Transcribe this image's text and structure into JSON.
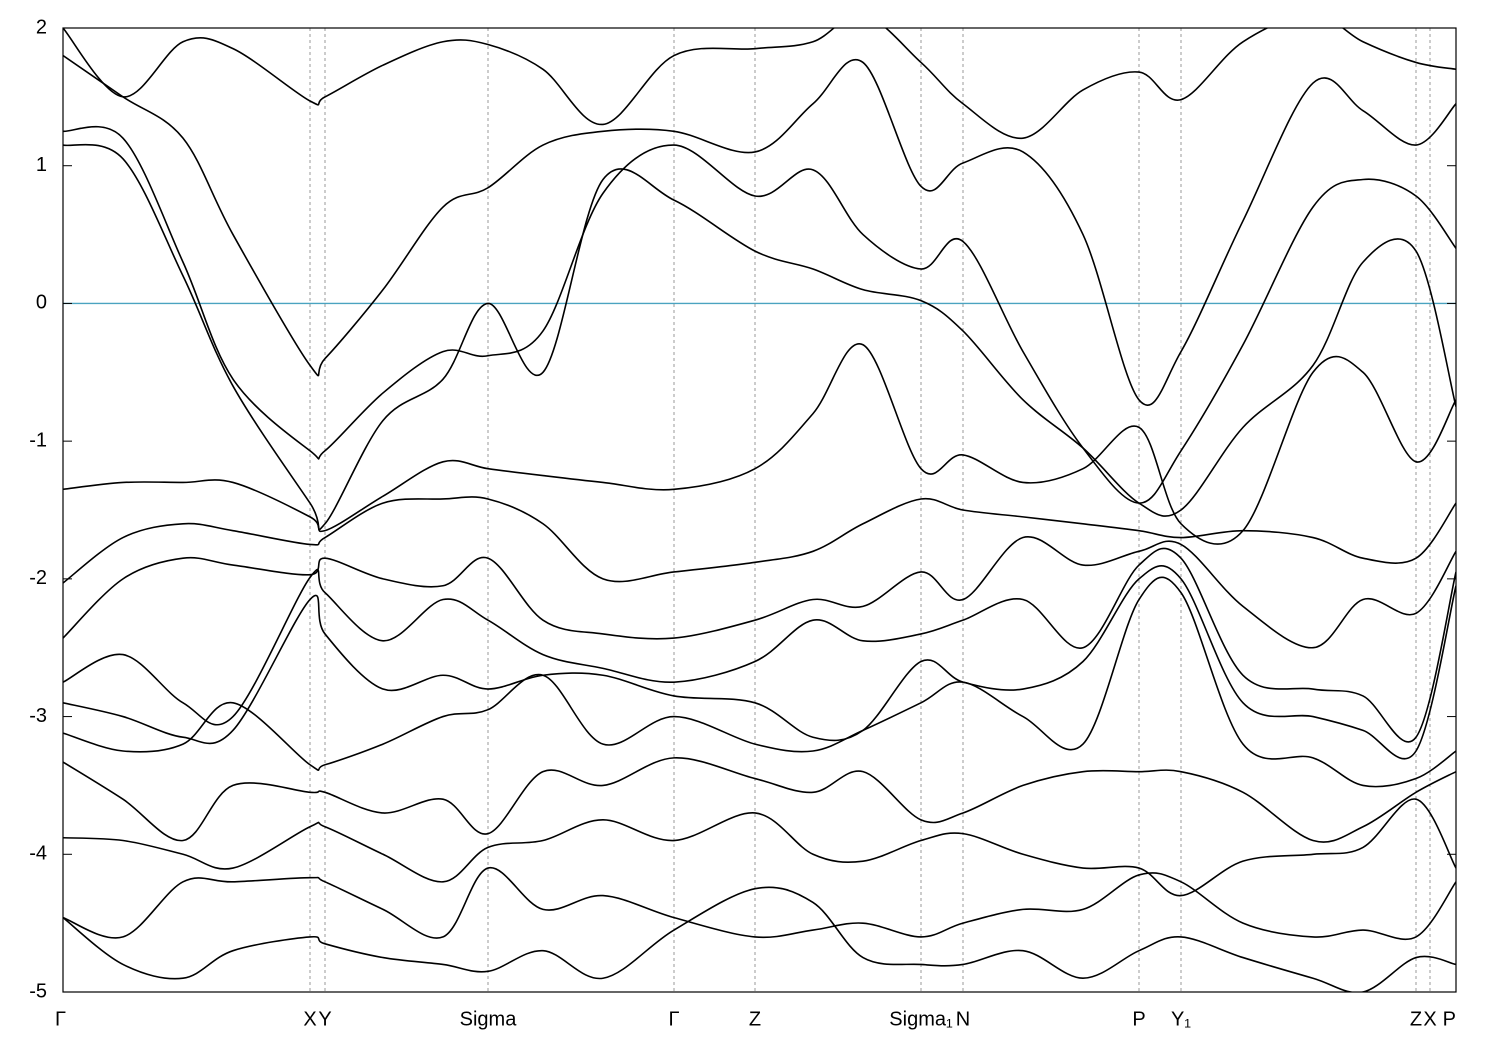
{
  "chart_data": {
    "type": "line",
    "x": [
      0,
      60,
      120,
      170,
      247,
      262,
      320,
      380,
      425,
      480,
      540,
      611,
      692,
      750,
      800,
      858,
      900,
      960,
      1020,
      1076,
      1118,
      1180,
      1250,
      1300,
      1353,
      1393
    ],
    "xlim": [
      0,
      1393
    ],
    "xticks": [
      {
        "value": 0,
        "label": "Γ"
      },
      {
        "value": 247,
        "label": "X"
      },
      {
        "value": 262,
        "label": "Y"
      },
      {
        "value": 425,
        "label": "Sigma"
      },
      {
        "value": 611,
        "label": "Γ"
      },
      {
        "value": 692,
        "label": "Z"
      },
      {
        "value": 858,
        "label": "Sigma₁"
      },
      {
        "value": 900,
        "label": "N"
      },
      {
        "value": 1076,
        "label": "P"
      },
      {
        "value": 1118,
        "label": "Y₁"
      },
      {
        "value": 1353,
        "label": "Z"
      },
      {
        "value": 1367,
        "label": "X"
      },
      {
        "value": 1393,
        "label": "P"
      }
    ],
    "ylim": [
      -5,
      2
    ],
    "yticks": [
      -5,
      -4,
      -3,
      -2,
      -1,
      0,
      1,
      2
    ],
    "grid": true,
    "fermi_level": 0,
    "fermi_color": "#4aa3c0",
    "series": [
      {
        "color": "#000000",
        "values": [
          2.0,
          1.5,
          1.9,
          1.85,
          1.47,
          1.5,
          1.73,
          1.9,
          1.88,
          1.7,
          1.3,
          1.8,
          1.85,
          1.9,
          2.1,
          1.75,
          1.45,
          1.2,
          1.55,
          1.68,
          1.48,
          1.9,
          2.1,
          1.9,
          1.75,
          1.7
        ]
      },
      {
        "color": "#000000",
        "values": [
          1.8,
          1.5,
          1.2,
          0.5,
          -0.45,
          -0.4,
          0.1,
          0.7,
          0.84,
          1.15,
          1.25,
          1.25,
          1.1,
          1.45,
          1.75,
          0.85,
          1.02,
          1.1,
          0.5,
          -0.7,
          -0.35,
          0.6,
          1.6,
          1.4,
          1.15,
          1.45
        ]
      },
      {
        "color": "#000000",
        "values": [
          1.25,
          1.2,
          0.3,
          -0.55,
          -1.07,
          -1.07,
          -0.65,
          -0.35,
          -0.38,
          -0.2,
          0.8,
          1.15,
          0.78,
          0.97,
          0.5,
          0.25,
          0.45,
          -0.35,
          -1.05,
          -1.45,
          -1.07,
          -0.3,
          0.7,
          0.9,
          0.78,
          0.4
        ]
      },
      {
        "color": "#000000",
        "values": [
          1.15,
          1.05,
          0.2,
          -0.6,
          -1.45,
          -1.6,
          -0.85,
          -0.55,
          0.0,
          -0.5,
          0.9,
          0.75,
          0.38,
          0.25,
          0.1,
          0.02,
          -0.2,
          -0.7,
          -1.05,
          -1.45,
          -1.5,
          -0.9,
          -0.45,
          0.3,
          0.38,
          -0.75
        ]
      },
      {
        "color": "#000000",
        "values": [
          -1.35,
          -1.3,
          -1.3,
          -1.3,
          -1.55,
          -1.65,
          -1.4,
          -1.15,
          -1.2,
          -1.25,
          -1.3,
          -1.35,
          -1.2,
          -0.8,
          -0.3,
          -1.2,
          -1.1,
          -1.3,
          -1.2,
          -0.9,
          -1.6,
          -1.65,
          -0.5,
          -0.5,
          -1.15,
          -0.7
        ]
      },
      {
        "color": "#000000",
        "values": [
          -2.03,
          -1.7,
          -1.6,
          -1.65,
          -1.75,
          -1.7,
          -1.45,
          -1.42,
          -1.42,
          -1.6,
          -2.0,
          -1.95,
          -1.88,
          -1.8,
          -1.6,
          -1.42,
          -1.5,
          -1.55,
          -1.6,
          -1.65,
          -1.7,
          -1.65,
          -1.7,
          -1.85,
          -1.85,
          -1.45
        ]
      },
      {
        "color": "#000000",
        "values": [
          -2.43,
          -2.0,
          -1.85,
          -1.9,
          -1.97,
          -1.85,
          -2.0,
          -2.05,
          -1.85,
          -2.3,
          -2.4,
          -2.43,
          -2.3,
          -2.15,
          -2.2,
          -1.95,
          -2.15,
          -1.7,
          -1.9,
          -1.8,
          -1.75,
          -2.2,
          -2.5,
          -2.15,
          -2.25,
          -1.8
        ]
      },
      {
        "color": "#000000",
        "values": [
          -2.75,
          -2.55,
          -2.9,
          -3.0,
          -1.99,
          -2.1,
          -2.45,
          -2.15,
          -2.3,
          -2.55,
          -2.65,
          -2.75,
          -2.6,
          -2.3,
          -2.45,
          -2.4,
          -2.3,
          -2.15,
          -2.5,
          -1.9,
          -1.85,
          -2.7,
          -2.8,
          -2.85,
          -3.15,
          -1.95
        ]
      },
      {
        "color": "#000000",
        "values": [
          -2.9,
          -3.0,
          -3.15,
          -3.1,
          -2.15,
          -2.4,
          -2.8,
          -2.7,
          -2.8,
          -2.7,
          -2.7,
          -2.85,
          -2.9,
          -3.15,
          -3.1,
          -2.6,
          -2.75,
          -2.8,
          -2.6,
          -2.0,
          -2.0,
          -2.9,
          -3.0,
          -3.1,
          -3.25,
          -2.05
        ]
      },
      {
        "color": "#000000",
        "values": [
          -3.12,
          -3.25,
          -3.2,
          -2.9,
          -3.35,
          -3.35,
          -3.2,
          -3.0,
          -2.95,
          -2.7,
          -3.2,
          -3.0,
          -3.2,
          -3.25,
          -3.1,
          -2.9,
          -2.75,
          -3.0,
          -3.2,
          -2.15,
          -2.1,
          -3.2,
          -3.3,
          -3.5,
          -3.45,
          -3.25
        ]
      },
      {
        "color": "#000000",
        "values": [
          -3.33,
          -3.6,
          -3.9,
          -3.5,
          -3.55,
          -3.55,
          -3.7,
          -3.6,
          -3.85,
          -3.4,
          -3.5,
          -3.3,
          -3.45,
          -3.55,
          -3.4,
          -3.75,
          -3.7,
          -3.5,
          -3.4,
          -3.4,
          -3.4,
          -3.55,
          -3.9,
          -3.8,
          -3.55,
          -3.4
        ]
      },
      {
        "color": "#000000",
        "values": [
          -3.88,
          -3.9,
          -4.0,
          -4.1,
          -3.8,
          -3.8,
          -4.0,
          -4.2,
          -3.95,
          -3.9,
          -3.75,
          -3.9,
          -3.7,
          -4.0,
          -4.05,
          -3.9,
          -3.85,
          -4.0,
          -4.1,
          -4.1,
          -4.3,
          -4.05,
          -4.0,
          -3.95,
          -3.6,
          -4.1
        ]
      },
      {
        "color": "#000000",
        "values": [
          -4.46,
          -4.6,
          -4.2,
          -4.2,
          -4.17,
          -4.2,
          -4.4,
          -4.6,
          -4.1,
          -4.4,
          -4.3,
          -4.46,
          -4.6,
          -4.55,
          -4.5,
          -4.6,
          -4.5,
          -4.4,
          -4.4,
          -4.15,
          -4.2,
          -4.5,
          -4.6,
          -4.55,
          -4.6,
          -4.2
        ]
      },
      {
        "color": "#000000",
        "values": [
          -4.46,
          -4.8,
          -4.9,
          -4.7,
          -4.6,
          -4.65,
          -4.75,
          -4.8,
          -4.85,
          -4.7,
          -4.9,
          -4.55,
          -4.25,
          -4.35,
          -4.75,
          -4.8,
          -4.8,
          -4.7,
          -4.9,
          -4.7,
          -4.6,
          -4.75,
          -4.9,
          -5.0,
          -4.75,
          -4.8
        ]
      }
    ]
  }
}
